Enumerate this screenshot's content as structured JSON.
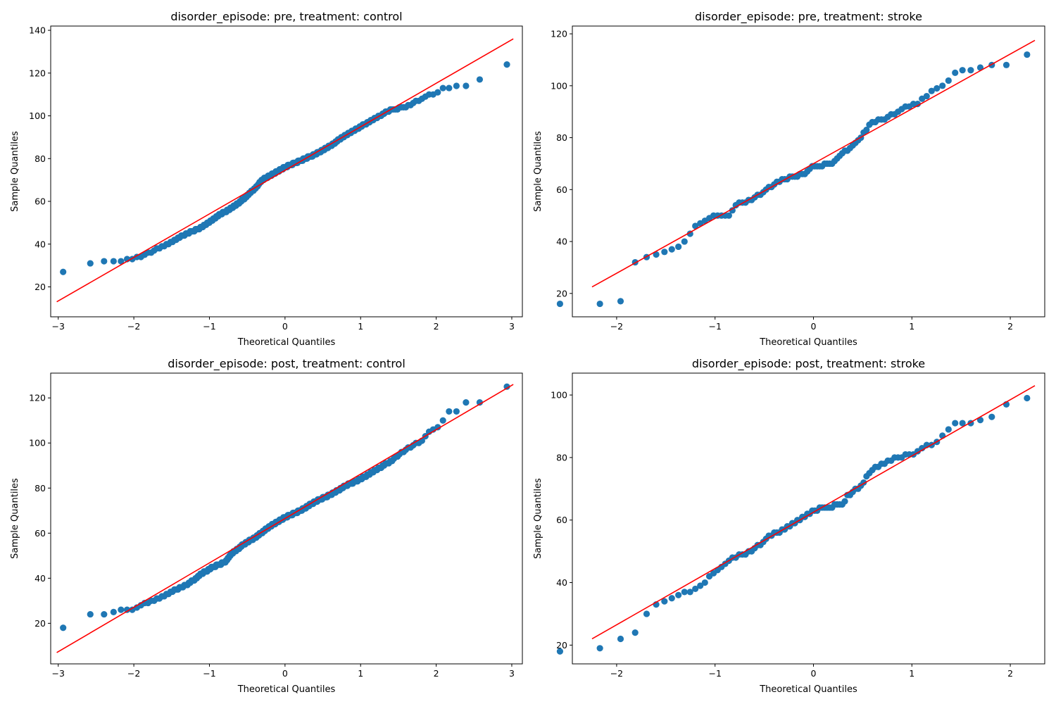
{
  "chart_data": [
    {
      "type": "scatter",
      "title": "disorder_episode: pre, treatment: control",
      "xlabel": "Theoretical Quantiles",
      "ylabel": "Sample Quantiles",
      "xlim": [
        -3.1,
        3.14
      ],
      "ylim": [
        6,
        142
      ],
      "xticks": [
        -3,
        -2,
        -1,
        0,
        1,
        2,
        3
      ],
      "yticks": [
        20,
        40,
        60,
        80,
        100,
        120,
        140
      ],
      "grid": false,
      "n_points": 300,
      "series": [
        {
          "kind": "quantile_points",
          "color": "#1f77b4",
          "quantile_knots": [
            [
              -3.02,
              27
            ],
            [
              -2.8,
              28
            ],
            [
              -2.66,
              28
            ],
            [
              -2.56,
              31
            ],
            [
              -2.5,
              32
            ],
            [
              -2.2,
              32
            ],
            [
              -2.05,
              33
            ],
            [
              -1.9,
              34
            ],
            [
              -1.8,
              36
            ],
            [
              -1.6,
              39
            ],
            [
              -1.45,
              42
            ],
            [
              -1.3,
              45
            ],
            [
              -1.1,
              48
            ],
            [
              -0.9,
              53
            ],
            [
              -0.7,
              57
            ],
            [
              -0.55,
              61
            ],
            [
              -0.4,
              66
            ],
            [
              -0.3,
              70
            ],
            [
              -0.1,
              74
            ],
            [
              0.0,
              76
            ],
            [
              0.2,
              79
            ],
            [
              0.4,
              82
            ],
            [
              0.6,
              86
            ],
            [
              0.8,
              91
            ],
            [
              1.0,
              95
            ],
            [
              1.2,
              99
            ],
            [
              1.4,
              103
            ],
            [
              1.6,
              104
            ],
            [
              1.8,
              108
            ],
            [
              2.0,
              111
            ],
            [
              2.1,
              113
            ],
            [
              2.3,
              114
            ],
            [
              2.5,
              115
            ],
            [
              2.6,
              118
            ],
            [
              2.8,
              120
            ],
            [
              3.02,
              126
            ]
          ]
        },
        {
          "kind": "reference_line",
          "color": "#ff0000",
          "points": [
            [
              -3.02,
              13
            ],
            [
              3.02,
              136
            ]
          ]
        }
      ]
    },
    {
      "type": "scatter",
      "title": "disorder_episode: pre, treatment: stroke",
      "xlabel": "Theoretical Quantiles",
      "ylabel": "Sample Quantiles",
      "xlim": [
        -2.45,
        2.35
      ],
      "ylim": [
        11,
        123
      ],
      "xticks": [
        -2,
        -1,
        0,
        1,
        2
      ],
      "yticks": [
        20,
        40,
        60,
        80,
        100,
        120
      ],
      "grid": false,
      "n_points": 100,
      "series": [
        {
          "kind": "quantile_points",
          "color": "#1f77b4",
          "quantile_knots": [
            [
              -2.25,
              16
            ],
            [
              -1.96,
              17
            ],
            [
              -1.8,
              33
            ],
            [
              -1.65,
              35
            ],
            [
              -1.5,
              36
            ],
            [
              -1.4,
              37
            ],
            [
              -1.3,
              40
            ],
            [
              -1.2,
              46
            ],
            [
              -1.1,
              48
            ],
            [
              -1.0,
              50
            ],
            [
              -0.85,
              50
            ],
            [
              -0.8,
              54
            ],
            [
              -0.65,
              56
            ],
            [
              -0.55,
              58
            ],
            [
              -0.4,
              62
            ],
            [
              -0.3,
              64
            ],
            [
              -0.1,
              66
            ],
            [
              0.0,
              69
            ],
            [
              0.2,
              70
            ],
            [
              0.3,
              74
            ],
            [
              0.4,
              77
            ],
            [
              0.5,
              81
            ],
            [
              0.55,
              84
            ],
            [
              0.6,
              86
            ],
            [
              0.7,
              87
            ],
            [
              0.85,
              90
            ],
            [
              0.95,
              92
            ],
            [
              1.05,
              93
            ],
            [
              1.2,
              98
            ],
            [
              1.3,
              100
            ],
            [
              1.45,
              105
            ],
            [
              1.55,
              106
            ],
            [
              1.65,
              106
            ],
            [
              1.8,
              108
            ],
            [
              1.96,
              108
            ],
            [
              2.25,
              114
            ]
          ]
        },
        {
          "kind": "reference_line",
          "color": "#ff0000",
          "points": [
            [
              -2.25,
              22.5
            ],
            [
              2.25,
              117.5
            ]
          ]
        }
      ]
    },
    {
      "type": "scatter",
      "title": "disorder_episode: post, treatment: control",
      "xlabel": "Theoretical Quantiles",
      "ylabel": "Sample Quantiles",
      "xlim": [
        -3.1,
        3.14
      ],
      "ylim": [
        2,
        131
      ],
      "xticks": [
        -3,
        -2,
        -1,
        0,
        1,
        2,
        3
      ],
      "yticks": [
        20,
        40,
        60,
        80,
        100,
        120
      ],
      "grid": false,
      "n_points": 300,
      "series": [
        {
          "kind": "quantile_points",
          "color": "#1f77b4",
          "quantile_knots": [
            [
              -3.02,
              15
            ],
            [
              -2.8,
              22
            ],
            [
              -2.66,
              22
            ],
            [
              -2.56,
              24
            ],
            [
              -2.3,
              24
            ],
            [
              -2.2,
              26
            ],
            [
              -2.0,
              26
            ],
            [
              -1.9,
              28
            ],
            [
              -1.75,
              30
            ],
            [
              -1.5,
              34
            ],
            [
              -1.3,
              37
            ],
            [
              -1.1,
              42
            ],
            [
              -0.95,
              45
            ],
            [
              -0.8,
              47
            ],
            [
              -0.7,
              51
            ],
            [
              -0.55,
              55
            ],
            [
              -0.4,
              58
            ],
            [
              -0.2,
              63
            ],
            [
              0.0,
              67
            ],
            [
              0.2,
              70
            ],
            [
              0.4,
              74
            ],
            [
              0.6,
              77
            ],
            [
              0.8,
              81
            ],
            [
              1.0,
              84
            ],
            [
              1.2,
              88
            ],
            [
              1.4,
              92
            ],
            [
              1.6,
              97
            ],
            [
              1.8,
              101
            ],
            [
              1.9,
              105
            ],
            [
              2.0,
              106
            ],
            [
              2.05,
              108
            ],
            [
              2.1,
              111
            ],
            [
              2.15,
              114
            ],
            [
              2.3,
              114
            ],
            [
              2.4,
              118
            ],
            [
              2.66,
              118
            ],
            [
              2.8,
              125
            ],
            [
              3.02,
              125
            ]
          ]
        },
        {
          "kind": "reference_line",
          "color": "#ff0000",
          "points": [
            [
              -3.02,
              7
            ],
            [
              3.02,
              126
            ]
          ]
        }
      ]
    },
    {
      "type": "scatter",
      "title": "disorder_episode: post, treatment: stroke",
      "xlabel": "Theoretical Quantiles",
      "ylabel": "Sample Quantiles",
      "xlim": [
        -2.45,
        2.35
      ],
      "ylim": [
        14,
        107
      ],
      "xticks": [
        -2,
        -1,
        0,
        1,
        2
      ],
      "yticks": [
        20,
        40,
        60,
        80,
        100
      ],
      "grid": false,
      "n_points": 100,
      "series": [
        {
          "kind": "quantile_points",
          "color": "#1f77b4",
          "quantile_knots": [
            [
              -2.25,
              18
            ],
            [
              -1.96,
              22
            ],
            [
              -1.8,
              24
            ],
            [
              -1.65,
              32
            ],
            [
              -1.5,
              34
            ],
            [
              -1.4,
              36
            ],
            [
              -1.2,
              38
            ],
            [
              -1.0,
              43
            ],
            [
              -0.9,
              46
            ],
            [
              -0.8,
              48
            ],
            [
              -0.65,
              50
            ],
            [
              -0.55,
              52
            ],
            [
              -0.45,
              55
            ],
            [
              -0.3,
              57
            ],
            [
              -0.2,
              59
            ],
            [
              -0.1,
              61
            ],
            [
              0.0,
              63
            ],
            [
              0.1,
              64
            ],
            [
              0.3,
              65
            ],
            [
              0.35,
              68
            ],
            [
              0.45,
              70
            ],
            [
              0.5,
              72
            ],
            [
              0.6,
              76
            ],
            [
              0.75,
              79
            ],
            [
              0.85,
              80
            ],
            [
              1.0,
              81
            ],
            [
              1.1,
              83
            ],
            [
              1.25,
              85
            ],
            [
              1.35,
              89
            ],
            [
              1.45,
              91
            ],
            [
              1.55,
              91
            ],
            [
              1.65,
              92
            ],
            [
              1.8,
              93
            ],
            [
              1.96,
              97
            ],
            [
              2.25,
              100
            ]
          ]
        },
        {
          "kind": "reference_line",
          "color": "#ff0000",
          "points": [
            [
              -2.25,
              22
            ],
            [
              2.25,
              103
            ]
          ]
        }
      ]
    }
  ]
}
